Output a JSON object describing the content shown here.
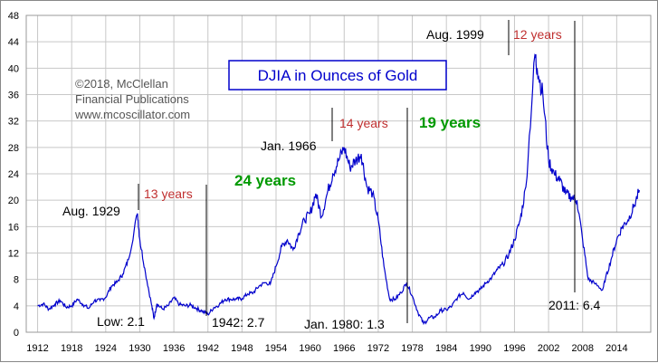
{
  "chart_data": {
    "type": "line",
    "title": "DJIA in Ounces of Gold",
    "xlabel": "",
    "ylabel": "",
    "xlim": [
      1910,
      2020
    ],
    "ylim": [
      0,
      48
    ],
    "x_ticks": [
      "1912",
      "1918",
      "1924",
      "1930",
      "1936",
      "1942",
      "1948",
      "1954",
      "1960",
      "1966",
      "1972",
      "1978",
      "1984",
      "1990",
      "1996",
      "2002",
      "2008",
      "2014"
    ],
    "y_ticks": [
      "0",
      "4",
      "8",
      "12",
      "16",
      "20",
      "24",
      "28",
      "32",
      "36",
      "40",
      "44",
      "48"
    ],
    "grid": true,
    "series_color": "#0000cc",
    "series": [
      {
        "x": [
          1912,
          1913,
          1914,
          1915,
          1916,
          1917,
          1918,
          1919,
          1920,
          1921,
          1922,
          1923,
          1924,
          1925,
          1926,
          1927,
          1928,
          1929.6,
          1930,
          1931,
          1932,
          1932.5,
          1933,
          1934,
          1935,
          1936,
          1937,
          1938,
          1939,
          1940,
          1941,
          1942,
          1943,
          1944,
          1945,
          1946,
          1947,
          1948,
          1949,
          1950,
          1951,
          1952,
          1953,
          1954,
          1955,
          1956,
          1957,
          1958,
          1959,
          1960,
          1961,
          1962,
          1963,
          1964,
          1965,
          1966,
          1967,
          1968,
          1969,
          1970,
          1971,
          1972,
          1973,
          1974,
          1975,
          1976,
          1977,
          1978,
          1979,
          1980,
          1981,
          1982,
          1983,
          1984,
          1985,
          1986,
          1987,
          1988,
          1989,
          1990,
          1991,
          1992,
          1993,
          1994,
          1995,
          1996,
          1997,
          1998,
          1999.6,
          2000,
          2001,
          2002,
          2003,
          2004,
          2005,
          2006,
          2007,
          2008,
          2009,
          2010,
          2011.5,
          2012,
          2013,
          2014,
          2015,
          2016,
          2017,
          2018
        ],
        "y": [
          4.0,
          4.3,
          3.5,
          4.2,
          4.8,
          3.8,
          4.0,
          5.0,
          4.2,
          3.6,
          4.8,
          4.8,
          5.3,
          7.0,
          7.6,
          8.8,
          11.0,
          18.0,
          14.0,
          9.0,
          4.5,
          2.1,
          4.3,
          3.5,
          4.0,
          5.2,
          4.2,
          4.0,
          4.1,
          3.6,
          3.2,
          2.7,
          3.7,
          4.2,
          5.0,
          5.0,
          5.0,
          5.1,
          5.8,
          6.0,
          7.0,
          7.5,
          7.3,
          10.0,
          13.0,
          14.0,
          12.5,
          15.0,
          17.0,
          18.0,
          21.0,
          17.5,
          21.0,
          24.0,
          26.0,
          28.0,
          25.0,
          26.0,
          27.0,
          22.0,
          21.0,
          17.0,
          10.0,
          5.0,
          5.0,
          6.0,
          7.5,
          5.5,
          3.0,
          1.3,
          2.2,
          2.3,
          3.3,
          3.4,
          4.0,
          5.3,
          6.0,
          5.0,
          6.0,
          6.5,
          7.5,
          8.3,
          9.5,
          10.3,
          11.8,
          14.0,
          17.0,
          22.0,
          42.0,
          40.0,
          36.0,
          26.0,
          24.0,
          23.0,
          21.0,
          20.5,
          20.0,
          14.0,
          8.0,
          7.5,
          6.4,
          8.0,
          11.0,
          14.0,
          16.0,
          17.0,
          19.0,
          21.5
        ]
      }
    ],
    "annotations": {
      "copyright_line1": "©2018, McClellan",
      "copyright_line2": "Financial Publications",
      "copyright_line3": "www.mcoscillator.com",
      "aug1929": "Aug. 1929",
      "low": "Low: 2.1",
      "years13": "13 years",
      "year1942": "1942: 2.7",
      "years24": "24 years",
      "jan1966": "Jan. 1966",
      "years14": "14 years",
      "jan1980": "Jan. 1980: 1.3",
      "years19": "19 years",
      "aug1999": "Aug. 1999",
      "years12": "12 years",
      "year2011": "2011: 6.4"
    },
    "colors": {
      "line": "#0000cc",
      "grid": "#c8c8c8",
      "red_text": "#c03030",
      "green_text": "#009900",
      "title_border": "#0000cc"
    }
  }
}
